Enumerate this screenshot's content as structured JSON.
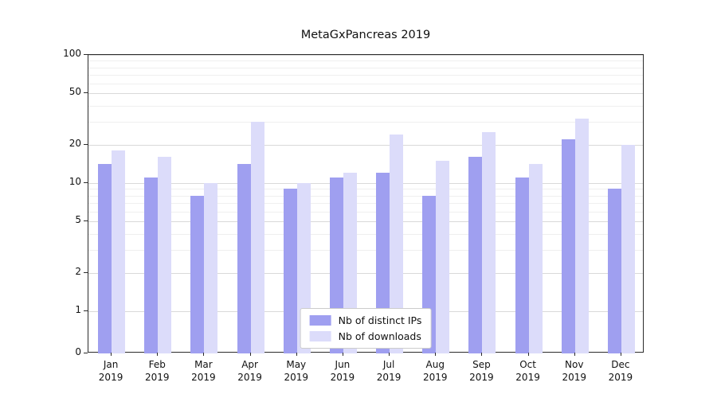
{
  "chart_data": {
    "type": "bar",
    "title": "MetaGxPancreas 2019",
    "categories": [
      "Jan",
      "Feb",
      "Mar",
      "Apr",
      "May",
      "Jun",
      "Jul",
      "Aug",
      "Sep",
      "Oct",
      "Nov",
      "Dec"
    ],
    "category_year": "2019",
    "series": [
      {
        "name": "Nb of distinct IPs",
        "color": "#9f9ff0",
        "values": [
          14,
          11,
          8,
          14,
          9,
          11,
          12,
          8,
          16,
          11,
          22,
          9
        ]
      },
      {
        "name": "Nb of downloads",
        "color": "#dcdcfa",
        "values": [
          18,
          16,
          10,
          30,
          10,
          12,
          24,
          15,
          25,
          14,
          32,
          20
        ]
      }
    ],
    "yscale": "symlog",
    "yticks": [
      0,
      1,
      2,
      5,
      10,
      20,
      50,
      100
    ],
    "yticks_minor": [
      3,
      4,
      6,
      7,
      8,
      9,
      30,
      40,
      60,
      70,
      80,
      90
    ],
    "ylim": [
      0,
      100
    ],
    "xlabel": "",
    "ylabel": "",
    "grid": true,
    "legend_position": "lower center"
  }
}
